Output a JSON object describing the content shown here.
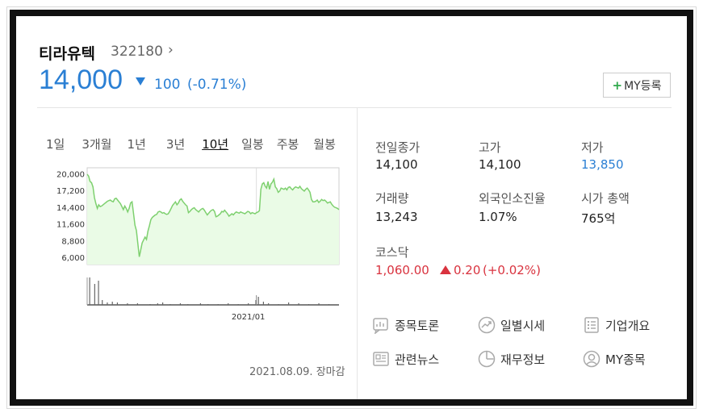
{
  "stock": {
    "name": "티라유텍",
    "code": "322180",
    "chevron": "›",
    "price": "14,000",
    "change": "100",
    "change_pct": "(-0.71%)",
    "direction": "down"
  },
  "my_button": {
    "plus": "+",
    "label": "MY등록"
  },
  "periods": [
    "1일",
    "3개월",
    "1년",
    "3년",
    "10년",
    "일봉",
    "주봉",
    "월봉"
  ],
  "active_period": "10년",
  "chart_data": {
    "type": "area",
    "yticks": [
      "20,000",
      "17,200",
      "14,400",
      "11,600",
      "8,800",
      "6,000"
    ],
    "xticks": [
      "2021/01"
    ],
    "values": [
      19900,
      19600,
      18700,
      18500,
      17800,
      16000,
      15000,
      14200,
      14800,
      14500,
      14600,
      14800,
      15000,
      15200,
      15400,
      15500,
      15600,
      15400,
      15300,
      15800,
      15900,
      15600,
      15300,
      15000,
      14500,
      14000,
      14600,
      14200,
      13600,
      14200,
      15100,
      15300,
      13400,
      11400,
      10500,
      8300,
      6100,
      7200,
      8400,
      8900,
      9400,
      9000,
      10400,
      11300,
      12300,
      12700,
      12900,
      13100,
      13200,
      13600,
      13700,
      13600,
      13400,
      13500,
      13300,
      13200,
      13300,
      13700,
      14200,
      14700,
      15000,
      15300,
      14800,
      15100,
      15600,
      15800,
      15400,
      15100,
      14800,
      14600,
      13500,
      13700,
      14000,
      14200,
      14300,
      14000,
      13800,
      13600,
      13900,
      14100,
      14200,
      13900,
      13500,
      13100,
      13400,
      13700,
      13900,
      14000,
      13700,
      12800,
      12900,
      13100,
      13300,
      13700,
      13600,
      13900,
      13600,
      13300,
      12900,
      13100,
      13300,
      13100,
      13400,
      13600,
      13500,
      13400,
      13600,
      13500,
      13400,
      13300,
      13500,
      13700,
      13600,
      13300,
      13500,
      13400,
      13300,
      13500,
      13600,
      13800,
      17400,
      18300,
      18500,
      17900,
      17600,
      18700,
      17400,
      18300,
      18600,
      19100,
      17800,
      17500,
      16900,
      17100,
      17600,
      17500,
      17400,
      17600,
      17300,
      17700,
      17800,
      17500,
      17300,
      17600,
      17800,
      17700,
      17600,
      17900,
      17500,
      17300,
      17100,
      17400,
      17600,
      17300,
      16900,
      15700,
      15300,
      15300,
      15400,
      15600,
      15200,
      15400,
      15700,
      15500,
      15600,
      15400,
      15100,
      15200,
      15300,
      14900,
      14600,
      14400,
      14300,
      14200,
      14000
    ]
  },
  "date_status": "2021.08.09. 장마감",
  "stats": [
    {
      "label": "전일종가",
      "value": "14,100"
    },
    {
      "label": "고가",
      "value": "14,100"
    },
    {
      "label": "저가",
      "value": "13,850"
    },
    {
      "label": "거래량",
      "value": "13,243"
    },
    {
      "label": "외국인소진율",
      "value": "1.07%"
    },
    {
      "label": "시가 총액",
      "value": "765억"
    }
  ],
  "index": {
    "label": "코스닥",
    "value": "1,060.00",
    "change": "0.20",
    "change_pct": "(+0.02%)"
  },
  "links": [
    {
      "label": "종목토론",
      "icon": "chart-board-icon"
    },
    {
      "label": "일별시세",
      "icon": "trend-icon"
    },
    {
      "label": "기업개요",
      "icon": "list-doc-icon"
    },
    {
      "label": "관련뉴스",
      "icon": "news-icon"
    },
    {
      "label": "재무정보",
      "icon": "pie-icon"
    },
    {
      "label": "MY종목",
      "icon": "user-icon"
    }
  ],
  "colors": {
    "down": "#2a7fd4",
    "up": "#d9333f",
    "chart_line": "#7ed06f",
    "chart_fill": "#eafbe6",
    "my_plus": "#2fa84b"
  }
}
